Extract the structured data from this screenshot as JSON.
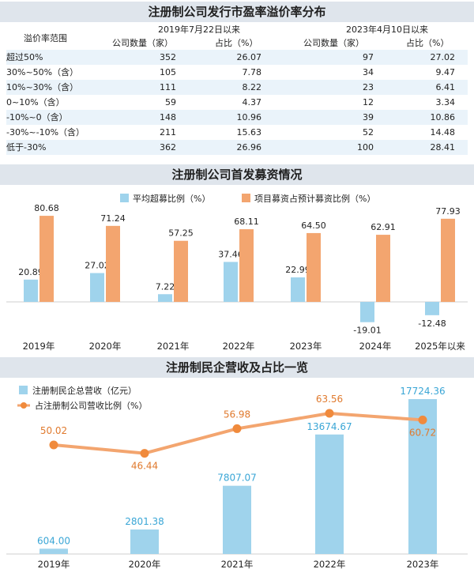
{
  "table": {
    "title": "注册制公司发行市盈率溢价率分布",
    "group_labels": [
      "2019年7月22日以来",
      "2023年4月10日以来"
    ],
    "headers": [
      "溢价率范围",
      "公司数量（家）",
      "占比（%）",
      "公司数量（家）",
      "占比（%）"
    ],
    "rows": [
      [
        "超过50%",
        "352",
        "26.07",
        "97",
        "27.02"
      ],
      [
        "30%~50%（含）",
        "105",
        "7.78",
        "34",
        "9.47"
      ],
      [
        "10%~30%（含）",
        "111",
        "8.22",
        "23",
        "6.41"
      ],
      [
        "0~10%（含）",
        "59",
        "4.37",
        "12",
        "3.34"
      ],
      [
        "-10%~0（含）",
        "148",
        "10.96",
        "39",
        "10.86"
      ],
      [
        "-30%~-10%（含）",
        "211",
        "15.63",
        "52",
        "14.48"
      ],
      [
        "低于-30%",
        "362",
        "26.96",
        "100",
        "28.41"
      ]
    ]
  },
  "chart_data": [
    {
      "type": "bar",
      "title": "注册制公司首发募资情况",
      "categories": [
        "2019年",
        "2020年",
        "2021年",
        "2022年",
        "2023年",
        "2024年",
        "2025年以来"
      ],
      "series": [
        {
          "name": "平均超募比例（%）",
          "values": [
            20.89,
            27.02,
            7.22,
            37.46,
            22.99,
            -19.01,
            -12.48
          ]
        },
        {
          "name": "项目募资占预计募资比例（%）",
          "values": [
            80.68,
            71.24,
            57.25,
            68.11,
            64.5,
            62.91,
            77.93
          ]
        }
      ],
      "value_labels": [
        [
          "20.89",
          "27.02",
          "7.22",
          "37.46",
          "22.99",
          "-19.01",
          "-12.48"
        ],
        [
          "80.68",
          "71.24",
          "57.25",
          "68.11",
          "64.50",
          "62.91",
          "77.93"
        ]
      ],
      "legend": "top",
      "colors": [
        "#9fd3ec",
        "#f3a56f"
      ]
    },
    {
      "type": "bar-line",
      "title": "注册制民企营收及占比一览",
      "categories": [
        "2019年",
        "2020年",
        "2021年",
        "2022年",
        "2023年"
      ],
      "bar_series": {
        "name": "注册制民企总营收（亿元）",
        "values": [
          604.0,
          2801.38,
          7807.07,
          13674.67,
          17724.36
        ],
        "labels": [
          "604.00",
          "2801.38",
          "7807.07",
          "13674.67",
          "17724.36"
        ]
      },
      "line_series": {
        "name": "占注册制公司营收比例（%）",
        "values": [
          50.02,
          46.44,
          56.98,
          63.56,
          60.72
        ],
        "labels": [
          "50.02",
          "46.44",
          "56.98",
          "63.56",
          "60.72"
        ]
      },
      "legend": "top-left",
      "colors": {
        "bar": "#9fd3ec",
        "bar_label": "#3aa6d6",
        "line": "#f3a56f",
        "point": "#f08a3c",
        "line_label": "#e07a2e"
      }
    }
  ]
}
